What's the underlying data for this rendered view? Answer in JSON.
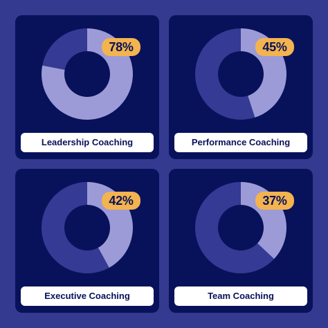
{
  "colors": {
    "background": "#333a8f",
    "card": "#07125a",
    "donut_value": "#9c9bd7",
    "donut_rest": "#353a94",
    "badge": "#f3b34f",
    "label_bg": "#ffffff",
    "text_dark": "#07125a"
  },
  "chart_data": [
    {
      "type": "pie",
      "label": "Leadership Coaching",
      "percent_label": "78%",
      "values": [
        78,
        22
      ]
    },
    {
      "type": "pie",
      "label": "Performance Coaching",
      "percent_label": "45%",
      "values": [
        45,
        55
      ]
    },
    {
      "type": "pie",
      "label": "Executive Coaching",
      "percent_label": "42%",
      "values": [
        42,
        58
      ]
    },
    {
      "type": "pie",
      "label": "Team Coaching",
      "percent_label": "37%",
      "values": [
        37,
        63
      ]
    }
  ]
}
